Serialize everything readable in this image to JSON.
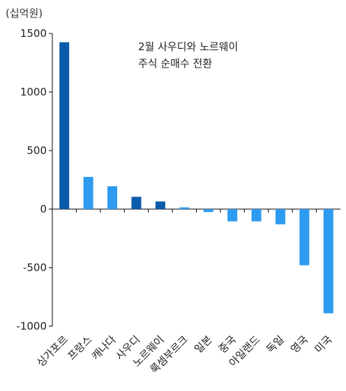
{
  "chart_data": {
    "type": "bar",
    "unit_label": "(십억원)",
    "annotation": [
      "2월 사우디와 노르웨이",
      "주식 순매수 전환"
    ],
    "categories": [
      "싱가포르",
      "프랑스",
      "캐나다",
      "사우디",
      "노르웨이",
      "룩셈부르크",
      "일본",
      "중국",
      "아일랜드",
      "독일",
      "영국",
      "미국"
    ],
    "values": [
      1425,
      275,
      195,
      105,
      65,
      15,
      -25,
      -105,
      -105,
      -130,
      -480,
      -890
    ],
    "highlight": [
      true,
      false,
      false,
      true,
      true,
      false,
      false,
      false,
      false,
      false,
      false,
      false
    ],
    "ylim": [
      -1000,
      1500
    ],
    "yticks": [
      1500,
      1000,
      500,
      0,
      -500,
      -1000
    ],
    "ytick_labels": [
      "1500",
      "1000",
      "500",
      "0",
      "-500",
      "-1000"
    ],
    "grid": false,
    "colors": {
      "highlight": "#0B5BAA",
      "normal": "#2D9BF0",
      "axis": "#000000"
    }
  }
}
